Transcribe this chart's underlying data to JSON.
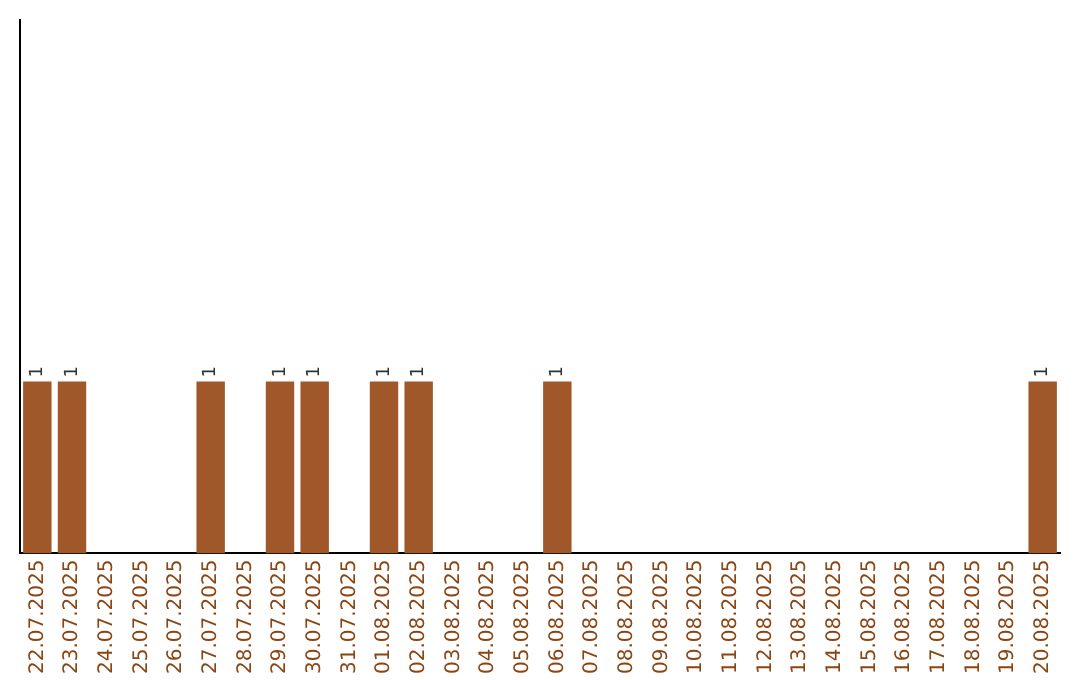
{
  "chart_data": {
    "type": "bar",
    "categories": [
      "22.07.2025",
      "23.07.2025",
      "24.07.2025",
      "25.07.2025",
      "26.07.2025",
      "27.07.2025",
      "28.07.2025",
      "29.07.2025",
      "30.07.2025",
      "31.07.2025",
      "01.08.2025",
      "02.08.2025",
      "03.08.2025",
      "04.08.2025",
      "05.08.2025",
      "06.08.2025",
      "07.08.2025",
      "08.08.2025",
      "09.08.2025",
      "10.08.2025",
      "11.08.2025",
      "12.08.2025",
      "13.08.2025",
      "14.08.2025",
      "15.08.2025",
      "16.08.2025",
      "17.08.2025",
      "18.08.2025",
      "19.08.2025",
      "20.08.2025"
    ],
    "values": [
      1,
      1,
      0,
      0,
      0,
      1,
      0,
      1,
      1,
      0,
      1,
      1,
      0,
      0,
      0,
      1,
      0,
      0,
      0,
      0,
      0,
      0,
      0,
      0,
      0,
      0,
      0,
      0,
      0,
      1
    ],
    "value_labels": [
      "1",
      "1",
      null,
      null,
      null,
      "1",
      null,
      "1",
      "1",
      null,
      "1",
      "1",
      null,
      null,
      null,
      "1",
      null,
      null,
      null,
      null,
      null,
      null,
      null,
      null,
      null,
      null,
      null,
      null,
      null,
      "1"
    ],
    "color": "#a0572a",
    "ylim": [
      0,
      3.1
    ],
    "tick_labels": "x",
    "grid": false,
    "legend": false
  }
}
